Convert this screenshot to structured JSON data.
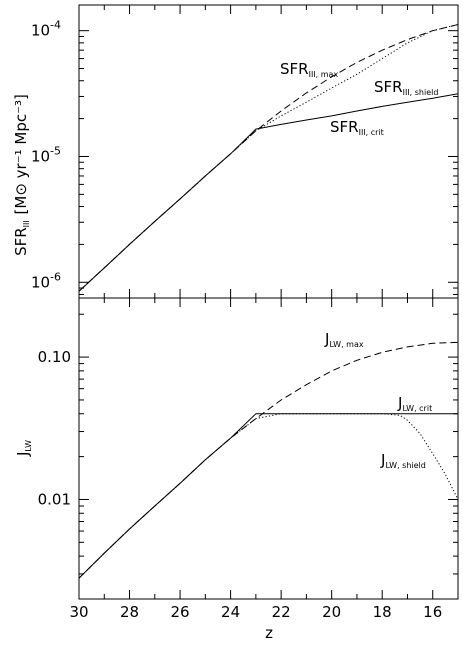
{
  "figure": {
    "x_axis": {
      "label": "z",
      "ticks": [
        "30",
        "28",
        "26",
        "24",
        "22",
        "20",
        "18",
        "16"
      ]
    }
  },
  "chart_data": [
    {
      "type": "line",
      "scale_y": "log",
      "xlim": [
        30,
        15
      ],
      "ylim": [
        7.5e-07,
        0.00016
      ],
      "ylabel": {
        "main": "SFR",
        "sub": "III",
        "rest": " [M⊙ yr⁻¹ Mpc⁻³]"
      },
      "y_ticks": [
        {
          "value": 1e-06,
          "base": "10",
          "exp": "-6"
        },
        {
          "value": 1e-05,
          "base": "10",
          "exp": "-5"
        },
        {
          "value": 0.0001,
          "base": "10",
          "exp": "-4"
        }
      ],
      "annotations": [
        {
          "main": "SFR",
          "sub": "III, max",
          "near_series": "max"
        },
        {
          "main": "SFR",
          "sub": "III, shield",
          "near_series": "shield"
        },
        {
          "main": "SFR",
          "sub": "III, crit",
          "near_series": "crit"
        }
      ],
      "series": [
        {
          "key": "max",
          "style": "dashed",
          "x": [
            30,
            29,
            28,
            27,
            26,
            25,
            24,
            23,
            22,
            21,
            20,
            19,
            18,
            17,
            16,
            15
          ],
          "y": [
            8.5e-07,
            1.3e-06,
            2e-06,
            3.05e-06,
            4.6e-06,
            7e-06,
            1.05e-05,
            1.6e-05,
            2.3e-05,
            3.2e-05,
            4.3e-05,
            5.6e-05,
            7e-05,
            8.5e-05,
            0.0001,
            0.000112
          ]
        },
        {
          "key": "shield",
          "style": "dotted",
          "x": [
            30,
            29,
            28,
            27,
            26,
            25,
            24,
            23,
            22,
            21,
            20,
            19,
            18,
            17,
            16,
            15
          ],
          "y": [
            8.5e-07,
            1.3e-06,
            2e-06,
            3.05e-06,
            4.6e-06,
            7e-06,
            1.05e-05,
            1.6e-05,
            2.1e-05,
            2.7e-05,
            3.5e-05,
            4.5e-05,
            6e-05,
            8e-05,
            0.0001,
            0.000112
          ]
        },
        {
          "key": "crit",
          "style": "solid",
          "x": [
            30,
            29,
            28,
            27,
            26,
            25,
            24,
            23,
            22,
            21,
            20,
            19,
            18,
            17,
            16,
            15
          ],
          "y": [
            8.5e-07,
            1.3e-06,
            2e-06,
            3.05e-06,
            4.6e-06,
            7e-06,
            1.05e-05,
            1.65e-05,
            1.8e-05,
            1.95e-05,
            2.1e-05,
            2.3e-05,
            2.5e-05,
            2.7e-05,
            2.9e-05,
            3.15e-05
          ]
        }
      ]
    },
    {
      "type": "line",
      "scale_y": "log",
      "xlim": [
        30,
        15
      ],
      "ylim": [
        0.002,
        0.26
      ],
      "ylabel": {
        "main": "J",
        "sub": "LW",
        "rest": ""
      },
      "y_ticks": [
        {
          "value": 0.01,
          "label": "0.01"
        },
        {
          "value": 0.1,
          "label": "0.10"
        }
      ],
      "annotations": [
        {
          "main": "J",
          "sub": "LW, max",
          "near_series": "max"
        },
        {
          "main": "J",
          "sub": "LW, crit",
          "near_series": "crit"
        },
        {
          "main": "J",
          "sub": "LW, shield",
          "near_series": "shield"
        }
      ],
      "series": [
        {
          "key": "max",
          "style": "dashed",
          "x": [
            30,
            29,
            28,
            27,
            26,
            25,
            24,
            23,
            22,
            21,
            20,
            19,
            18,
            17,
            16,
            15
          ],
          "y": [
            0.0028,
            0.0042,
            0.0062,
            0.009,
            0.013,
            0.019,
            0.027,
            0.037,
            0.05,
            0.064,
            0.08,
            0.095,
            0.108,
            0.118,
            0.125,
            0.127
          ]
        },
        {
          "key": "shield",
          "style": "dotted",
          "x": [
            30,
            29,
            28,
            27,
            26,
            25,
            24,
            23,
            22,
            21,
            20,
            19,
            18,
            17.3,
            17,
            16.5,
            16,
            15.5,
            15
          ],
          "y": [
            0.0028,
            0.0042,
            0.0062,
            0.009,
            0.013,
            0.019,
            0.027,
            0.037,
            0.04,
            0.04,
            0.04,
            0.04,
            0.04,
            0.039,
            0.036,
            0.029,
            0.021,
            0.015,
            0.01
          ]
        },
        {
          "key": "crit",
          "style": "solid",
          "x": [
            30,
            29,
            28,
            27,
            26,
            25,
            24,
            23,
            22,
            21,
            20,
            19,
            18,
            17,
            16,
            15
          ],
          "y": [
            0.0028,
            0.0042,
            0.0062,
            0.009,
            0.013,
            0.019,
            0.027,
            0.04,
            0.04,
            0.04,
            0.04,
            0.04,
            0.04,
            0.04,
            0.04,
            0.04
          ]
        }
      ]
    }
  ]
}
